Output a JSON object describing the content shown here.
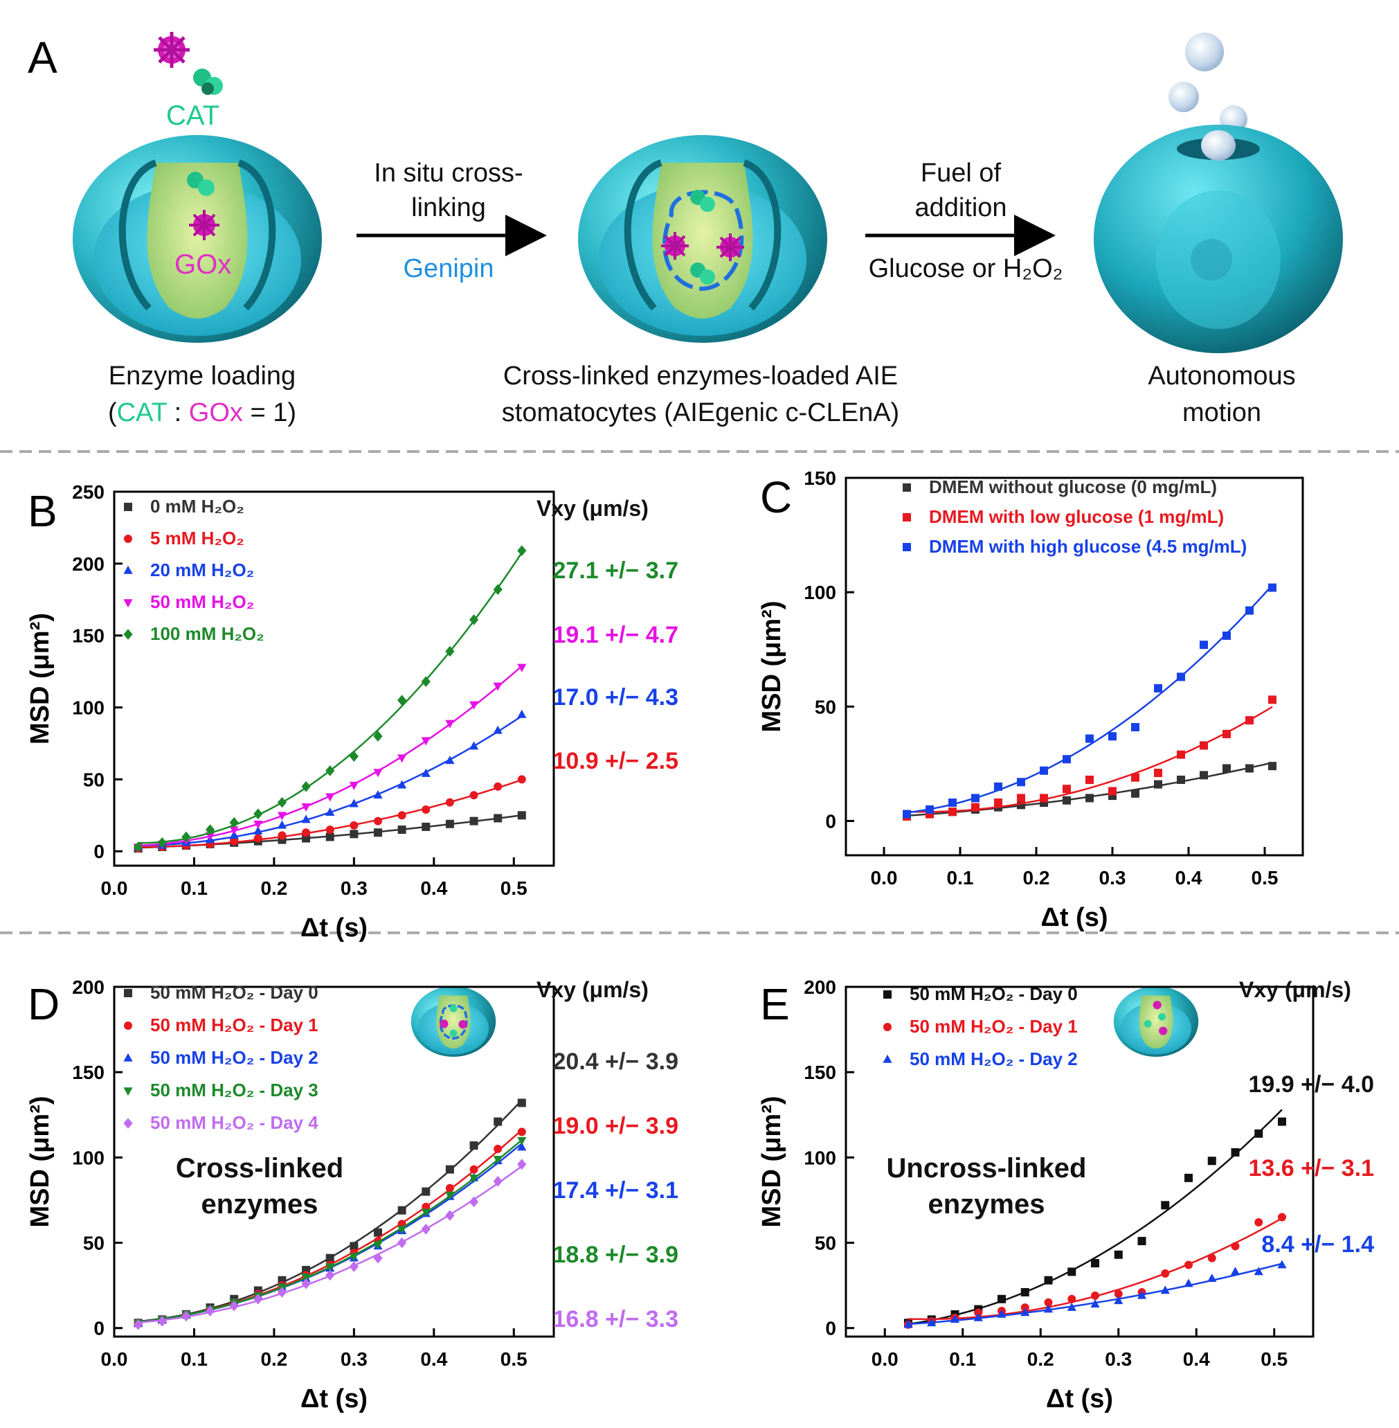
{
  "panel_a": {
    "label": "A",
    "cat_label": "CAT",
    "gox_label": "GOx",
    "step1_line1": "In situ cross-",
    "step1_line2": "linking",
    "step1_reagent": "Genipin",
    "step2_line1": "Fuel of",
    "step2_line2": "addition",
    "step2_fuel": "Glucose or H₂O₂",
    "caption1_line1": "Enzyme loading",
    "caption1_line2_open": "(",
    "caption1_cat": "CAT",
    "caption1_colon": " : ",
    "caption1_gox": "GOx",
    "caption1_tail": " = 1)",
    "caption2_line1": "Cross-linked enzymes-loaded AIE",
    "caption2_line2": "stomatocytes (AIEgenic c-CLEnA)",
    "caption3_line1": "Autonomous",
    "caption3_line2": "motion",
    "colors": {
      "shell": "#27a6b3",
      "shell_light": "#6fe6f3",
      "core": "#bfe08a",
      "cat": "#2fd49a",
      "gox": "#e02fc4",
      "genipin": "#1f8fe0"
    }
  },
  "chart_data": [
    {
      "id": "B",
      "panel_label": "B",
      "type": "scatter",
      "xlabel": "Δt (s)",
      "ylabel": "MSD (μm²)",
      "xlim": [
        0.0,
        0.55
      ],
      "ylim": [
        -10,
        250
      ],
      "xticks": [
        0.0,
        0.1,
        0.2,
        0.3,
        0.4,
        0.5
      ],
      "yticks": [
        0,
        50,
        100,
        150,
        200,
        250
      ],
      "x": [
        0.03,
        0.06,
        0.09,
        0.12,
        0.15,
        0.18,
        0.21,
        0.24,
        0.27,
        0.3,
        0.33,
        0.36,
        0.39,
        0.42,
        0.45,
        0.48,
        0.51
      ],
      "annotation_header": "Vxy (μm/s)",
      "series": [
        {
          "name": "0 mM H₂O₂",
          "color": "#333333",
          "marker": "square",
          "values": [
            2,
            3,
            4,
            5,
            6,
            7,
            8,
            9,
            10,
            12,
            13,
            15,
            17,
            19,
            21,
            23,
            25
          ],
          "annotation": ""
        },
        {
          "name": "5 mM H₂O₂",
          "color": "#e8181f",
          "marker": "circle",
          "values": [
            2,
            3,
            4,
            5,
            7,
            9,
            11,
            13,
            15,
            18,
            21,
            25,
            29,
            34,
            39,
            45,
            50
          ],
          "annotation": "10.9 +/− 2.5"
        },
        {
          "name": "20 mM H₂O₂",
          "color": "#1741e8",
          "marker": "triangle-up",
          "values": [
            3,
            4,
            6,
            8,
            11,
            14,
            18,
            22,
            27,
            33,
            39,
            46,
            54,
            63,
            73,
            84,
            95
          ],
          "annotation": "17.0 +/− 4.3"
        },
        {
          "name": "50 mM H₂O₂",
          "color": "#e610e6",
          "marker": "triangle-down",
          "values": [
            3,
            5,
            8,
            11,
            15,
            19,
            25,
            31,
            38,
            46,
            55,
            65,
            77,
            89,
            102,
            115,
            128
          ],
          "annotation": "19.1 +/− 4.7"
        },
        {
          "name": "100 mM H₂O₂",
          "color": "#1c8a2a",
          "marker": "diamond",
          "values": [
            3,
            6,
            10,
            15,
            20,
            26,
            34,
            45,
            56,
            66,
            80,
            105,
            118,
            139,
            161,
            182,
            209
          ],
          "annotation": "27.1 +/− 3.7"
        }
      ]
    },
    {
      "id": "C",
      "panel_label": "C",
      "type": "scatter",
      "xlabel": "Δt (s)",
      "ylabel": "MSD (μm²)",
      "xlim": [
        -0.05,
        0.55
      ],
      "ylim": [
        -15,
        150
      ],
      "xticks": [
        0.0,
        0.1,
        0.2,
        0.3,
        0.4,
        0.5
      ],
      "yticks": [
        0,
        50,
        100,
        150
      ],
      "x": [
        0.03,
        0.06,
        0.09,
        0.12,
        0.15,
        0.18,
        0.21,
        0.24,
        0.27,
        0.3,
        0.33,
        0.36,
        0.39,
        0.42,
        0.45,
        0.48,
        0.51
      ],
      "series": [
        {
          "name": "DMEM without glucose (0 mg/mL)",
          "color": "#333333",
          "marker": "square",
          "values": [
            2,
            3,
            4,
            5,
            6,
            7,
            8,
            9,
            10,
            11,
            12,
            16,
            18,
            20,
            23,
            23,
            24
          ]
        },
        {
          "name": "DMEM with low glucose (1 mg/mL)",
          "color": "#e8181f",
          "marker": "square",
          "values": [
            2,
            3,
            4,
            6,
            8,
            10,
            10,
            14,
            18,
            13,
            19,
            21,
            29,
            33,
            38,
            44,
            53
          ]
        },
        {
          "name": "DMEM with high glucose (4.5 mg/mL)",
          "color": "#1741e8",
          "marker": "square",
          "values": [
            3,
            5,
            8,
            10,
            15,
            17,
            22,
            27,
            36,
            37,
            41,
            58,
            63,
            77,
            81,
            92,
            102
          ]
        }
      ]
    },
    {
      "id": "D",
      "panel_label": "D",
      "type": "scatter",
      "xlabel": "Δt (s)",
      "ylabel": "MSD (μm²)",
      "xlim": [
        0.0,
        0.55
      ],
      "ylim": [
        -5,
        200
      ],
      "xticks": [
        0.0,
        0.1,
        0.2,
        0.3,
        0.4,
        0.5
      ],
      "yticks": [
        0,
        50,
        100,
        150,
        200
      ],
      "x": [
        0.03,
        0.06,
        0.09,
        0.12,
        0.15,
        0.18,
        0.21,
        0.24,
        0.27,
        0.3,
        0.33,
        0.36,
        0.39,
        0.42,
        0.45,
        0.48,
        0.51
      ],
      "annotation_header": "Vxy (μm/s)",
      "inner_label_line1": "Cross-linked",
      "inner_label_line2": "enzymes",
      "series": [
        {
          "name": "50 mM H₂O₂ - Day 0",
          "color": "#333333",
          "marker": "square",
          "values": [
            3,
            5,
            8,
            12,
            17,
            22,
            28,
            34,
            41,
            48,
            56,
            69,
            80,
            93,
            107,
            121,
            132
          ],
          "annotation": "20.4 +/− 3.9"
        },
        {
          "name": "50 mM H₂O₂ - Day 1",
          "color": "#e8181f",
          "marker": "circle",
          "values": [
            3,
            5,
            8,
            11,
            15,
            20,
            25,
            31,
            37,
            44,
            51,
            61,
            71,
            82,
            93,
            105,
            115
          ],
          "annotation": "19.0 +/− 3.9"
        },
        {
          "name": "50 mM H₂O₂ - Day 2",
          "color": "#1741e8",
          "marker": "triangle-up",
          "values": [
            3,
            5,
            8,
            11,
            15,
            19,
            24,
            29,
            35,
            41,
            48,
            57,
            67,
            77,
            88,
            98,
            106
          ],
          "annotation": "17.4 +/− 3.1"
        },
        {
          "name": "50 mM H₂O₂ - Day 3",
          "color": "#1c8a2a",
          "marker": "triangle-down",
          "values": [
            3,
            5,
            8,
            11,
            15,
            19,
            24,
            30,
            36,
            42,
            49,
            58,
            68,
            78,
            88,
            99,
            110
          ],
          "annotation": "18.8 +/− 3.9"
        },
        {
          "name": "50 mM H₂O₂ - Day 4",
          "color": "#c06cf0",
          "marker": "diamond",
          "values": [
            2,
            4,
            7,
            10,
            13,
            17,
            21,
            26,
            31,
            36,
            41,
            50,
            58,
            66,
            74,
            86,
            96
          ],
          "annotation": "16.8 +/− 3.3"
        }
      ]
    },
    {
      "id": "E",
      "panel_label": "E",
      "type": "scatter",
      "xlabel": "Δt (s)",
      "ylabel": "MSD (μm²)",
      "xlim": [
        -0.05,
        0.55
      ],
      "ylim": [
        -5,
        200
      ],
      "xticks": [
        0.0,
        0.1,
        0.2,
        0.3,
        0.4,
        0.5
      ],
      "yticks": [
        0,
        50,
        100,
        150,
        200
      ],
      "x": [
        0.03,
        0.06,
        0.09,
        0.12,
        0.15,
        0.18,
        0.21,
        0.24,
        0.27,
        0.3,
        0.33,
        0.36,
        0.39,
        0.42,
        0.45,
        0.48,
        0.51
      ],
      "annotation_header": "Vxy (μm/s)",
      "inner_label_line1": "Uncross-linked",
      "inner_label_line2": "enzymes",
      "series": [
        {
          "name": "50 mM H₂O₂ - Day 0",
          "color": "#111111",
          "marker": "square",
          "values": [
            3,
            5,
            8,
            11,
            17,
            21,
            28,
            33,
            38,
            43,
            51,
            72,
            88,
            98,
            103,
            114,
            121
          ],
          "annotation": "19.9 +/− 4.0"
        },
        {
          "name": "50 mM H₂O₂ - Day 1",
          "color": "#e8181f",
          "marker": "circle",
          "values": [
            2,
            4,
            6,
            9,
            10,
            12,
            15,
            17,
            19,
            20,
            21,
            32,
            37,
            41,
            48,
            62,
            65
          ],
          "annotation": "13.6 +/− 3.1"
        },
        {
          "name": "50 mM H₂O₂ - Day 2",
          "color": "#1741e8",
          "marker": "triangle-up",
          "values": [
            2,
            3,
            5,
            6,
            8,
            9,
            11,
            12,
            14,
            16,
            19,
            22,
            26,
            29,
            33,
            33,
            37
          ],
          "annotation": "8.4 +/− 1.4"
        }
      ]
    }
  ]
}
